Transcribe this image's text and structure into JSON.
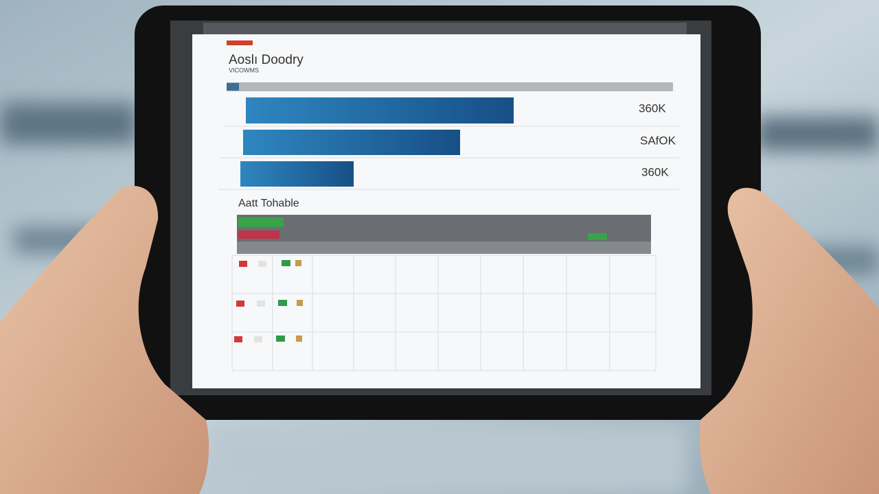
{
  "screen": {
    "title": "Aoslı Doodry",
    "subtitle": "VICOWMS",
    "bar_labels": [
      "360K",
      "SAfOK",
      "360K"
    ]
  },
  "table": {
    "title": "Aatt Tohable"
  }
}
